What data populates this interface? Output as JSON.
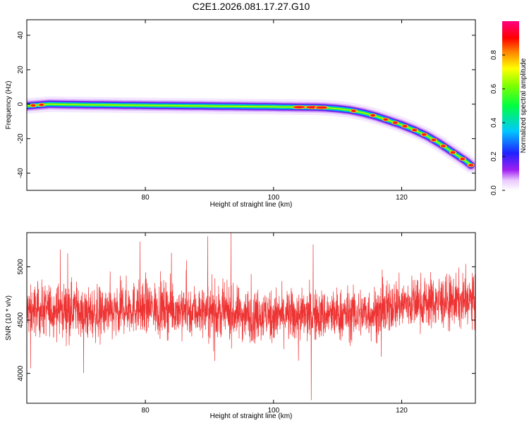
{
  "page_title": "C2E1.2026.081.17.27.G10",
  "colors": {
    "snr_line": "#ee3333",
    "axis": "#000000",
    "background": "#ffffff"
  },
  "chart_data": [
    {
      "type": "heatmap",
      "name": "spectrogram",
      "title": "C2E1.2026.081.17.27.G10",
      "xlabel": "Height of straight line (km)",
      "ylabel": "Frequency (Hz)",
      "xlim": [
        61.5,
        131.5
      ],
      "ylim": [
        -50,
        49
      ],
      "xticks": [
        80,
        100,
        120
      ],
      "yticks": [
        -40,
        -20,
        0,
        20,
        40
      ],
      "ridge": {
        "description": "frequency of peak amplitude vs height",
        "x": [
          61.5,
          65,
          70,
          75,
          80,
          85,
          90,
          95,
          100,
          103,
          106,
          108,
          110,
          112,
          114,
          116,
          118,
          120,
          122,
          124,
          126,
          128,
          130,
          131
        ],
        "y": [
          -1,
          0,
          -0.3,
          -0.5,
          -0.7,
          -0.9,
          -1.1,
          -1.3,
          -1.5,
          -1.7,
          -1.8,
          -2,
          -2.6,
          -3.5,
          -5,
          -7,
          -9.5,
          -12,
          -15,
          -18.5,
          -23,
          -28,
          -33,
          -36
        ]
      },
      "colorbar": {
        "label": "Normalized spectral amplitude",
        "range": [
          0,
          1
        ],
        "ticks": [
          0.0,
          0.2,
          0.4,
          0.6,
          0.8
        ],
        "tick_labels": [
          "0.0",
          "0.2",
          "0.4",
          "0.6",
          "0.8"
        ]
      }
    },
    {
      "type": "line",
      "name": "snr",
      "title": "",
      "xlabel": "Height of straight line (km)",
      "ylabel": "SNR (10 * v/v)",
      "xlim": [
        61.5,
        131.5
      ],
      "ylim": [
        3720,
        5320
      ],
      "xticks": [
        80,
        100,
        120
      ],
      "yticks": [
        4000,
        4500,
        5000
      ],
      "series": [
        {
          "name": "SNR",
          "approx_mean": 4580,
          "approx_noise_amplitude": 220,
          "x_range": [
            61.5,
            131.5
          ],
          "min": 3750,
          "max": 5320
        }
      ]
    }
  ]
}
